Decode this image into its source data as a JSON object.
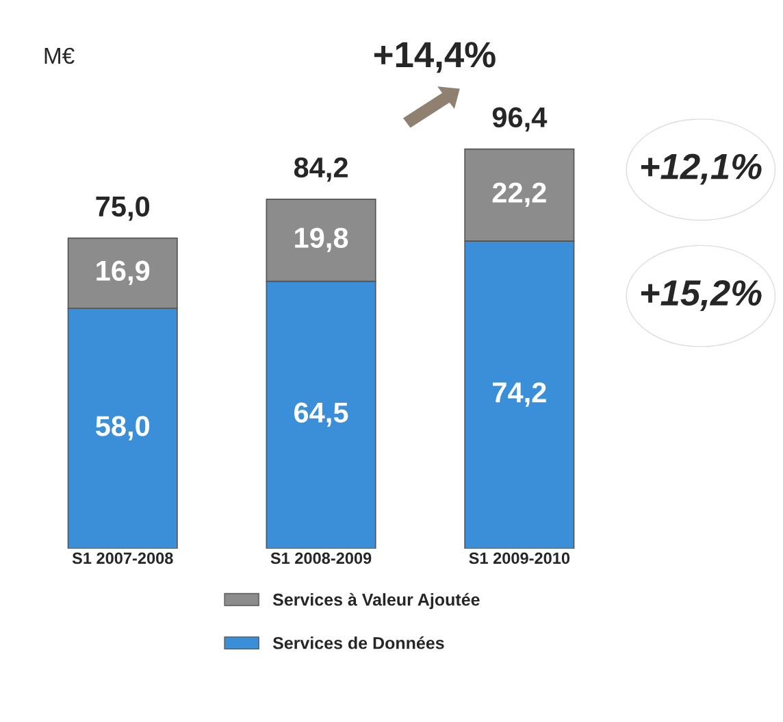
{
  "chart_data": {
    "type": "bar",
    "stacked": true,
    "categories": [
      "S1 2007-2008",
      "S1 2008-2009",
      "S1 2009-2010"
    ],
    "series": [
      {
        "name": "Services de Données",
        "color": "#3a8fd8",
        "values": [
          58.0,
          64.5,
          74.2
        ],
        "value_labels": [
          "58,0",
          "64,5",
          "74,2"
        ]
      },
      {
        "name": "Services à Valeur Ajoutée",
        "color": "#8c8c8c",
        "values": [
          16.9,
          19.8,
          22.2
        ],
        "value_labels": [
          "16,9",
          "19,8",
          "22,2"
        ]
      }
    ],
    "totals": [
      "75,0",
      "84,2",
      "96,4"
    ],
    "annotations": [
      "M€",
      "+14,4%",
      "+12,1%",
      "+15,2%"
    ],
    "legend": "bottom",
    "grid": false
  }
}
